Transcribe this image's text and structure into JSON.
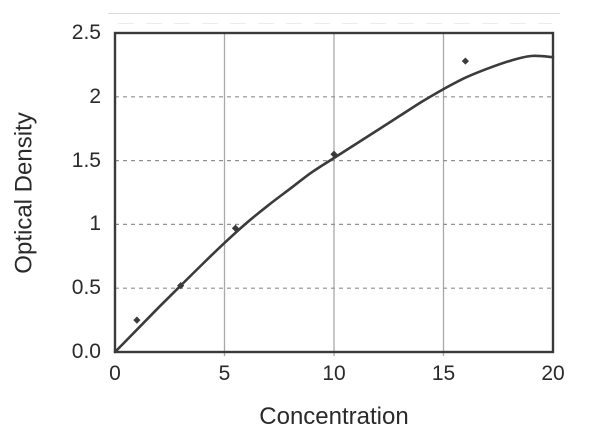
{
  "chart_data": {
    "type": "scatter",
    "title": "",
    "xlabel": "Concentration",
    "ylabel": "Optical Density",
    "xlim": [
      0,
      20
    ],
    "ylim": [
      0,
      2.5
    ],
    "x_ticks": [
      0,
      5,
      10,
      15,
      20
    ],
    "x_tick_labels": [
      "0",
      "5",
      "10",
      "15",
      "20"
    ],
    "y_ticks": [
      0,
      0.5,
      1,
      1.5,
      2,
      2.5
    ],
    "y_tick_labels": [
      "0.0",
      "0.5",
      "1",
      "1.5",
      "2",
      "2.5"
    ],
    "x_gridlines": [
      5,
      10,
      15
    ],
    "y_gridlines": [
      0.5,
      1,
      1.5,
      2
    ],
    "grid_style": {
      "vertical": "solid",
      "horizontal": "dashed"
    },
    "legend": "none",
    "points": [
      {
        "x": 1,
        "y": 0.25
      },
      {
        "x": 3,
        "y": 0.52
      },
      {
        "x": 5.5,
        "y": 0.97
      },
      {
        "x": 10,
        "y": 1.55
      },
      {
        "x": 16,
        "y": 2.28
      }
    ],
    "trend": [
      [
        0,
        0
      ],
      [
        1,
        0.175
      ],
      [
        2,
        0.35
      ],
      [
        3,
        0.52
      ],
      [
        4,
        0.69
      ],
      [
        5,
        0.855
      ],
      [
        6,
        1.01
      ],
      [
        7,
        1.15
      ],
      [
        8,
        1.28
      ],
      [
        9,
        1.41
      ],
      [
        10,
        1.52
      ],
      [
        11,
        1.63
      ],
      [
        12,
        1.74
      ],
      [
        13,
        1.85
      ],
      [
        14,
        1.96
      ],
      [
        15,
        2.06
      ],
      [
        16,
        2.15
      ],
      [
        17,
        2.22
      ],
      [
        18,
        2.28
      ],
      [
        19,
        2.32
      ],
      [
        20,
        2.31
      ]
    ],
    "colors": {
      "line": "#3b3b3b",
      "marker": "#3b3b3b",
      "frame": "#3a3a3a",
      "grid_solid": "#a9a9a9",
      "grid_dashed": "#909090",
      "text": "#2a2a2a",
      "background": "#ffffff"
    }
  }
}
